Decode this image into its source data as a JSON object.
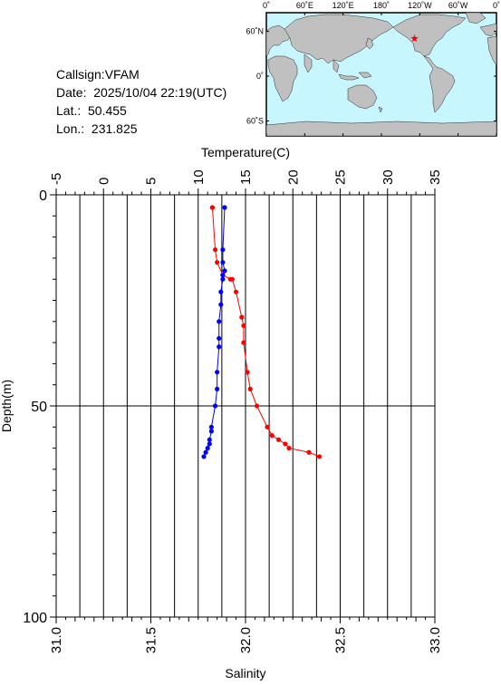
{
  "info": {
    "callsign": "Callsign:VFAM",
    "date": "Date:  2025/10/04 22:19(UTC)",
    "lat": "Lat.:  50.455",
    "lon": "Lon.:  231.825"
  },
  "map": {
    "top_labels": [
      "0˚",
      "60˚E",
      "120˚E",
      "180˚",
      "120˚W",
      "60˚W",
      "0˚"
    ],
    "left_labels": [
      "60˚N",
      "0˚",
      "60˚S"
    ],
    "marker_lat": 50.455,
    "marker_lon": 231.825,
    "ocean_color": "#c8f6ff",
    "land_color": "#c0c0c0",
    "marker_color": "#ff0000"
  },
  "chart_data": {
    "type": "line",
    "top_axis_label": "Temperature(C)",
    "bottom_axis_label": "Salinity",
    "left_axis_label": "Depth(m)",
    "temperature_range": [
      -5,
      35
    ],
    "temperature_ticks": [
      "-5",
      "0",
      "5",
      "10",
      "15",
      "20",
      "25",
      "30",
      "35"
    ],
    "salinity_range": [
      31.0,
      33.0
    ],
    "salinity_ticks": [
      "31.0",
      "31.5",
      "32.0",
      "32.5",
      "33.0"
    ],
    "depth_range": [
      0,
      100
    ],
    "depth_ticks": [
      "0",
      "50",
      "100"
    ],
    "grid": true,
    "series": [
      {
        "color": "#ff0000",
        "depth": [
          3,
          13,
          16,
          19,
          20,
          20,
          23,
          29,
          31,
          35,
          42,
          46,
          50,
          55,
          57,
          58,
          59,
          60,
          61,
          62
        ],
        "temperature": [
          11.5,
          11.8,
          12.0,
          12.6,
          13.4,
          13.6,
          14.0,
          14.6,
          14.8,
          14.8,
          15.2,
          15.5,
          16.2,
          17.3,
          17.8,
          18.5,
          19.2,
          19.6,
          21.7,
          22.8
        ],
        "salinity_equivalent": null
      },
      {
        "color": "#0000ff",
        "depth": [
          3,
          13,
          16,
          18,
          19,
          20,
          23,
          26,
          30,
          34,
          36,
          42,
          46,
          50,
          55,
          56,
          58,
          59,
          60,
          61,
          62
        ],
        "salinity": [
          31.89,
          31.88,
          31.88,
          31.89,
          31.88,
          31.88,
          31.87,
          31.87,
          31.86,
          31.86,
          31.86,
          31.85,
          31.85,
          31.84,
          31.82,
          31.82,
          31.81,
          31.81,
          31.8,
          31.79,
          31.78
        ]
      }
    ]
  }
}
